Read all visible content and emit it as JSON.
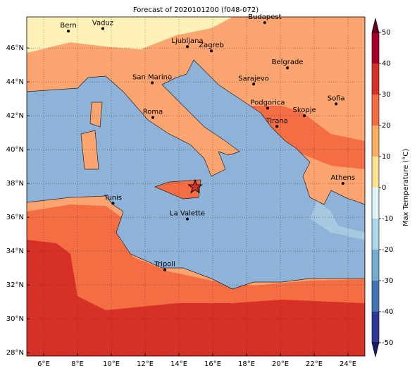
{
  "title": "Forecast of 2020101200 (f048-072)",
  "map": {
    "xlim": [
      5,
      25
    ],
    "ylim": [
      27.8,
      47.84
    ],
    "xticks": [
      {
        "value": 6,
        "label": "6°E"
      },
      {
        "value": 8,
        "label": "8°E"
      },
      {
        "value": 10,
        "label": "10°E"
      },
      {
        "value": 12,
        "label": "12°E"
      },
      {
        "value": 14,
        "label": "14°E"
      },
      {
        "value": 16,
        "label": "16°E"
      },
      {
        "value": 18,
        "label": "18°E"
      },
      {
        "value": 20,
        "label": "20°E"
      },
      {
        "value": 22,
        "label": "22°E"
      },
      {
        "value": 24,
        "label": "24°E"
      }
    ],
    "yticks": [
      {
        "value": 28,
        "label": "28°N"
      },
      {
        "value": 30,
        "label": "30°N"
      },
      {
        "value": 32,
        "label": "32°N"
      },
      {
        "value": 34,
        "label": "34°N"
      },
      {
        "value": 36,
        "label": "36°N"
      },
      {
        "value": 38,
        "label": "38°N"
      },
      {
        "value": 40,
        "label": "40°N"
      },
      {
        "value": 42,
        "label": "42°N"
      },
      {
        "value": 44,
        "label": "44°N"
      },
      {
        "value": 46,
        "label": "46°N"
      }
    ],
    "cities": [
      {
        "name": "Bern",
        "lon": 7.46,
        "lat": 47.0
      },
      {
        "name": "Vaduz",
        "lon": 9.5,
        "lat": 47.15
      },
      {
        "name": "Budapest",
        "lon": 19.08,
        "lat": 47.5
      },
      {
        "name": "Ljubljana",
        "lon": 14.5,
        "lat": 46.08
      },
      {
        "name": "Zagreb",
        "lon": 15.92,
        "lat": 45.83
      },
      {
        "name": "Belgrade",
        "lon": 20.42,
        "lat": 44.83
      },
      {
        "name": "San Marino",
        "lon": 12.42,
        "lat": 43.95
      },
      {
        "name": "Sarajevo",
        "lon": 18.42,
        "lat": 43.87
      },
      {
        "name": "Sofia",
        "lon": 23.3,
        "lat": 42.7
      },
      {
        "name": "Podgorica",
        "lon": 19.25,
        "lat": 42.45
      },
      {
        "name": "Skopje",
        "lon": 21.42,
        "lat": 42.0
      },
      {
        "name": "Roma",
        "lon": 12.46,
        "lat": 41.9
      },
      {
        "name": "Tirana",
        "lon": 19.8,
        "lat": 41.37
      },
      {
        "name": "Athens",
        "lon": 23.7,
        "lat": 38.0
      },
      {
        "name": "Tunis",
        "lon": 10.1,
        "lat": 36.83
      },
      {
        "name": "La Valette",
        "lon": 14.5,
        "lat": 35.9
      },
      {
        "name": "Tripoli",
        "lon": 13.17,
        "lat": 32.9
      }
    ],
    "star": {
      "lon": 14.96,
      "lat": 37.79
    }
  },
  "colorbar": {
    "label": "Max Temperature (°C)",
    "lim": [
      -50,
      50
    ],
    "ticks": [
      -50,
      -40,
      -30,
      -20,
      -10,
      0,
      10,
      20,
      30,
      40,
      50
    ],
    "colors": [
      "#313695",
      "#4575b4",
      "#74add1",
      "#abd9e9",
      "#e0f3f8",
      "#fee090",
      "#fdae61",
      "#f46d43",
      "#d73027",
      "#a50026"
    ],
    "under": "#1a1a6e",
    "over": "#67001f"
  }
}
